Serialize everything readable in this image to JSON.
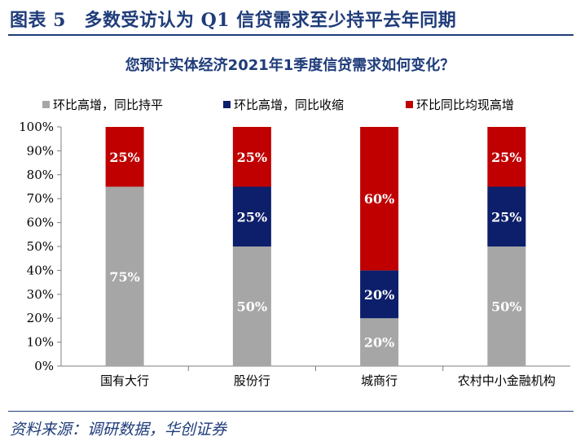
{
  "figure": {
    "title": "图表 5　多数受访认为 Q1 信贷需求至少持平去年同期",
    "source": "资料来源：调研数据，华创证券"
  },
  "chart_data": {
    "type": "bar",
    "stacked": true,
    "title": "您预计实体经济2021年1季度信贷需求如何变化？",
    "categories": [
      "国有大行",
      "股份行",
      "城商行",
      "农村中小金融机构"
    ],
    "series": [
      {
        "name": "环比高增，同比持平",
        "color": "#a6a6a6",
        "values": [
          75,
          50,
          20,
          50
        ],
        "labels": [
          "75%",
          "50%",
          "20%",
          "50%"
        ]
      },
      {
        "name": "环比高增，同比收缩",
        "color": "#0d1f6b",
        "values": [
          0,
          25,
          20,
          25
        ],
        "labels": [
          "",
          "25%",
          "20%",
          "25%"
        ]
      },
      {
        "name": "环比同比均现高增",
        "color": "#c00000",
        "values": [
          25,
          25,
          60,
          25
        ],
        "labels": [
          "25%",
          "25%",
          "60%",
          "25%"
        ]
      }
    ],
    "yticks": [
      "0%",
      "10%",
      "20%",
      "30%",
      "40%",
      "50%",
      "60%",
      "70%",
      "80%",
      "90%",
      "100%"
    ],
    "ylim": [
      0,
      100
    ],
    "grid": false,
    "legend_position": "top"
  }
}
